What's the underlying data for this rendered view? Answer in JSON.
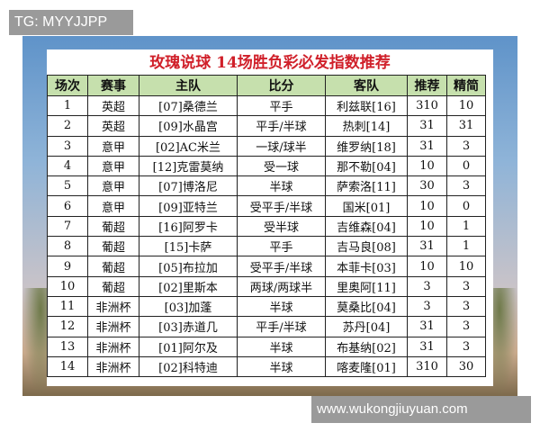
{
  "watermark_top": "TG: MYYJJPP",
  "watermark_bottom": "www.wukongjiuyuan.com",
  "title": "玫瑰说球  14场胜负彩必发指数推荐",
  "colors": {
    "title": "#d0202a",
    "header_bg": "#c6e0ad"
  },
  "headers": [
    "场次",
    "赛事",
    "主队",
    "比分",
    "客队",
    "推荐",
    "精简"
  ],
  "rows": [
    [
      "1",
      "英超",
      "[07]桑德兰",
      "平手",
      "利兹联[16]",
      "310",
      "10"
    ],
    [
      "2",
      "英超",
      "[09]水晶宫",
      "平手/半球",
      "热刺[14]",
      "31",
      "31"
    ],
    [
      "3",
      "意甲",
      "[02]AC米兰",
      "一球/球半",
      "维罗纳[18]",
      "31",
      "3"
    ],
    [
      "4",
      "意甲",
      "[12]克雷莫纳",
      "受一球",
      "那不勒[04]",
      "10",
      "0"
    ],
    [
      "5",
      "意甲",
      "[07]博洛尼",
      "半球",
      "萨索洛[11]",
      "30",
      "3"
    ],
    [
      "6",
      "意甲",
      "[09]亚特兰",
      "受平手/半球",
      "国米[01]",
      "10",
      "0"
    ],
    [
      "7",
      "葡超",
      "[16]阿罗卡",
      "受半球",
      "吉维森[04]",
      "10",
      "1"
    ],
    [
      "8",
      "葡超",
      "[15]卡萨",
      "平手",
      "吉马良[08]",
      "31",
      "1"
    ],
    [
      "9",
      "葡超",
      "[05]布拉加",
      "受平手/半球",
      "本菲卡[03]",
      "10",
      "10"
    ],
    [
      "10",
      "葡超",
      "[02]里斯本",
      "两球/两球半",
      "里奥阿[11]",
      "3",
      "3"
    ],
    [
      "11",
      "非洲杯",
      "[03]加蓬",
      "半球",
      "莫桑比[04]",
      "3",
      "3"
    ],
    [
      "12",
      "非洲杯",
      "[03]赤道几",
      "平手/半球",
      "苏丹[04]",
      "31",
      "3"
    ],
    [
      "13",
      "非洲杯",
      "[01]阿尔及",
      "半球",
      "布基纳[02]",
      "31",
      "3"
    ],
    [
      "14",
      "非洲杯",
      "[02]科特迪",
      "半球",
      "喀麦隆[01]",
      "310",
      "30"
    ]
  ]
}
